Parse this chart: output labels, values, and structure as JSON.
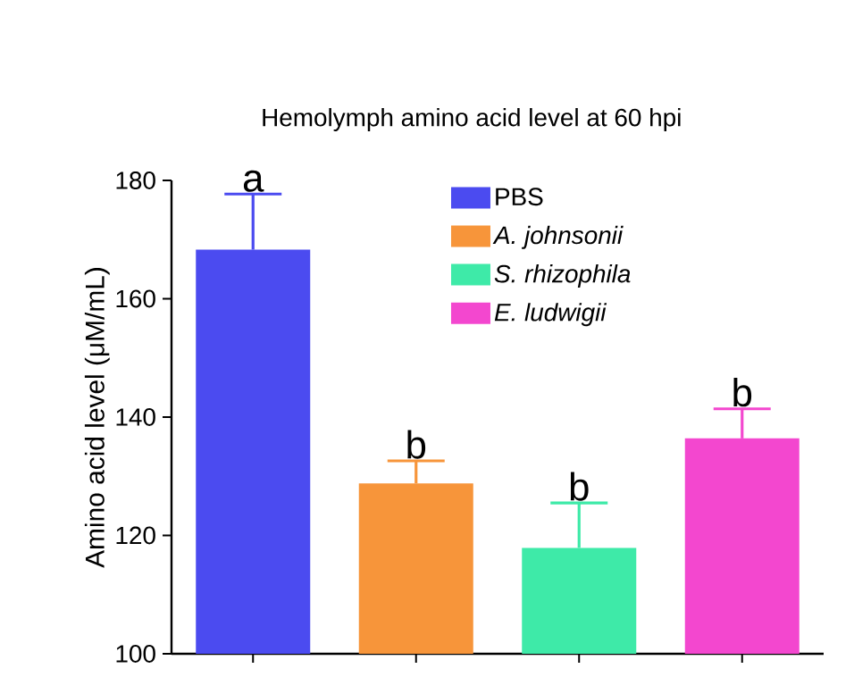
{
  "chart_data": {
    "type": "bar",
    "title": "Hemolymph amino acid level at 60 hpi",
    "ylabel": "Amino acid level (μM/mL)",
    "categories": [
      null,
      null,
      null,
      null
    ],
    "series": [
      {
        "name": "PBS",
        "color": "#4b4bf0",
        "values": [
          168.3,
          null,
          null,
          null
        ],
        "errors": [
          9.4,
          null,
          null,
          null
        ]
      },
      {
        "name": "*A. johnsonii*",
        "color": "#f7953a",
        "values": [
          null,
          128.8,
          null,
          null
        ],
        "errors": [
          null,
          3.8,
          null,
          null
        ]
      },
      {
        "name": "*S. rhizophila*",
        "color": "#3eeaa8",
        "values": [
          null,
          null,
          117.9,
          null
        ],
        "errors": [
          null,
          null,
          7.6,
          null
        ]
      },
      {
        "name": "*E. ludwigii*",
        "color": "#f347cf",
        "values": [
          null,
          null,
          null,
          136.4
        ],
        "errors": [
          null,
          null,
          null,
          5.0
        ]
      }
    ],
    "annotations": [
      "a",
      "b",
      "b",
      "b"
    ],
    "ylim": [
      100,
      180
    ],
    "yticks": [
      100,
      120,
      140,
      160,
      180
    ],
    "grid": false,
    "legend": "top right"
  }
}
